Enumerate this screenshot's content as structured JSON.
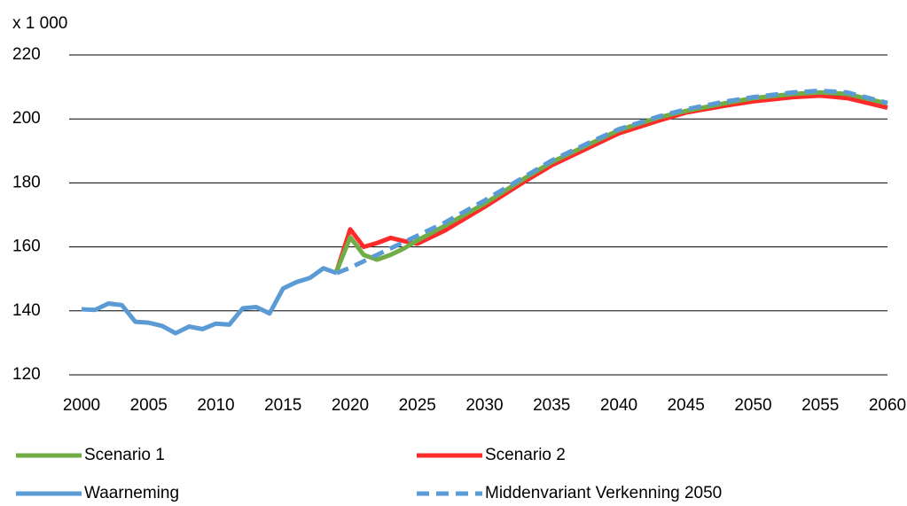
{
  "chart_data": {
    "type": "line",
    "y_axis_label": "x 1 000",
    "xlim": [
      2000,
      2060
    ],
    "xticks": [
      2000,
      2005,
      2010,
      2015,
      2020,
      2025,
      2030,
      2035,
      2040,
      2045,
      2050,
      2055,
      2060
    ],
    "ylim": [
      120,
      220
    ],
    "yticks": [
      120,
      140,
      160,
      180,
      200,
      220
    ],
    "grid": true,
    "legend": "bottom",
    "series": [
      {
        "name": "Scenario 1",
        "color": "#70ad47",
        "dashed": false,
        "x": [
          2019,
          2020,
          2021,
          2022,
          2023,
          2024,
          2025,
          2027,
          2030,
          2033,
          2035,
          2038,
          2040,
          2043,
          2045,
          2048,
          2050,
          2053,
          2055,
          2057,
          2060
        ],
        "values": [
          152.5,
          163,
          157.5,
          156,
          157.5,
          159.5,
          162,
          166.5,
          173.5,
          181.5,
          186.5,
          192.5,
          196.5,
          200.5,
          202.5,
          205,
          206.5,
          207.8,
          208.3,
          207.8,
          204.8
        ]
      },
      {
        "name": "Scenario 2",
        "color": "#ff2a2a",
        "dashed": false,
        "x": [
          2019,
          2020,
          2021,
          2022,
          2023,
          2024,
          2025,
          2027,
          2030,
          2033,
          2035,
          2038,
          2040,
          2043,
          2045,
          2048,
          2050,
          2053,
          2055,
          2057,
          2060
        ],
        "values": [
          152.5,
          165.5,
          160,
          161.2,
          162.8,
          161.8,
          161,
          165,
          172.5,
          180.5,
          185.5,
          191.5,
          195.5,
          199.5,
          202,
          204.2,
          205.5,
          206.8,
          207.3,
          206.5,
          203.5
        ]
      },
      {
        "name": "Waarneming",
        "color": "#5b9bd5",
        "dashed": false,
        "x": [
          2000,
          2001,
          2002,
          2003,
          2004,
          2005,
          2006,
          2007,
          2008,
          2009,
          2010,
          2011,
          2012,
          2013,
          2014,
          2015,
          2016,
          2017,
          2018,
          2019
        ],
        "values": [
          140.5,
          140.3,
          142.3,
          141.8,
          136.6,
          136.3,
          135.3,
          133.0,
          135.1,
          134.3,
          136.0,
          135.7,
          140.8,
          141.2,
          139.2,
          147.0,
          149.0,
          150.3,
          153.3,
          151.8
        ]
      },
      {
        "name": "Middenvariant Verkenning 2050",
        "color": "#5b9bd5",
        "dashed": true,
        "x": [
          2019,
          2020,
          2021,
          2022,
          2023,
          2024,
          2025,
          2027,
          2030,
          2033,
          2035,
          2038,
          2040,
          2043,
          2045,
          2048,
          2050,
          2053,
          2055,
          2057,
          2060
        ],
        "values": [
          151.8,
          153.5,
          155.5,
          157.5,
          159.5,
          161.5,
          163.5,
          167.5,
          174.5,
          182,
          187,
          193,
          196.8,
          200.8,
          203,
          205.5,
          206.8,
          208.3,
          208.8,
          208.3,
          205
        ]
      }
    ]
  }
}
